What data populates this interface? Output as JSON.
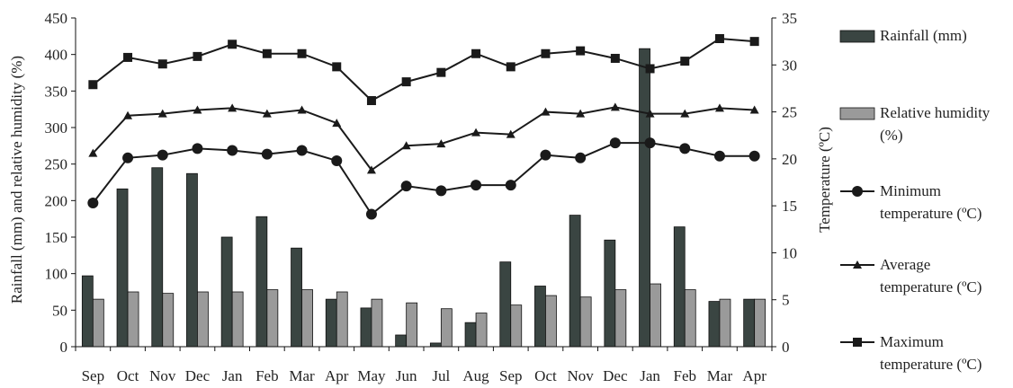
{
  "chart_data": {
    "type": "bar",
    "categories": [
      "Sep",
      "Oct",
      "Nov",
      "Dec",
      "Jan",
      "Feb",
      "Mar",
      "Apr",
      "May",
      "Jun",
      "Jul",
      "Aug",
      "Sep",
      "Oct",
      "Nov",
      "Dec",
      "Jan",
      "Feb",
      "Mar",
      "Apr"
    ],
    "ylabel": "Rainfall (mm) and relative humidity (%)",
    "y2label": "Temperature (ºC)",
    "ylim": [
      0,
      450
    ],
    "y2lim": [
      0,
      35
    ],
    "yticks": [
      "0",
      "50",
      "100",
      "150",
      "200",
      "250",
      "300",
      "350",
      "400",
      "450"
    ],
    "y2ticks": [
      "0",
      "5",
      "10",
      "15",
      "20",
      "25",
      "30",
      "35"
    ],
    "colors": {
      "rainfall": "#3a4542",
      "humidity": "#9a9a9a",
      "lines": "#1a1a1a"
    },
    "series": [
      {
        "name": "Rainfall (mm)",
        "kind": "bar",
        "axis": "left",
        "values": [
          97,
          216,
          245,
          237,
          150,
          178,
          135,
          65,
          53,
          16,
          5,
          33,
          116,
          83,
          180,
          146,
          408,
          164,
          62,
          65
        ]
      },
      {
        "name": "Relative humidity (%)",
        "kind": "bar",
        "axis": "left",
        "values": [
          65,
          75,
          73,
          75,
          75,
          78,
          78,
          75,
          65,
          60,
          52,
          46,
          57,
          70,
          68,
          78,
          86,
          78,
          65,
          65
        ]
      },
      {
        "name": "Minimum temperature (ºC)",
        "kind": "line",
        "marker": "circle",
        "axis": "right",
        "values": [
          15.3,
          20.1,
          20.4,
          21.1,
          20.9,
          20.5,
          20.9,
          19.8,
          14.1,
          17.1,
          16.6,
          17.2,
          17.2,
          20.4,
          20.1,
          21.7,
          21.7,
          21.1,
          20.3,
          20.3
        ]
      },
      {
        "name": "Average temperature (ºC)",
        "kind": "line",
        "marker": "triangle",
        "axis": "right",
        "values": [
          20.6,
          24.6,
          24.8,
          25.2,
          25.4,
          24.8,
          25.2,
          23.8,
          18.8,
          21.4,
          21.6,
          22.8,
          22.6,
          25.0,
          24.8,
          25.5,
          24.8,
          24.8,
          25.4,
          25.2
        ]
      },
      {
        "name": "Maximum temperature (ºC)",
        "kind": "line",
        "marker": "square",
        "axis": "right",
        "values": [
          27.9,
          30.8,
          30.1,
          30.9,
          32.2,
          31.2,
          31.2,
          29.8,
          26.2,
          28.2,
          29.2,
          31.2,
          29.8,
          31.2,
          31.5,
          30.7,
          29.6,
          30.4,
          32.8,
          32.5
        ]
      }
    ],
    "legend": {
      "placement": "right",
      "items": [
        {
          "lines": [
            "Rainfall (mm)"
          ]
        },
        {
          "lines": [
            "Relative humidity",
            "(%)"
          ]
        },
        {
          "lines": [
            "Minimum",
            "temperature (ºC)"
          ]
        },
        {
          "lines": [
            "Average",
            "temperature (ºC)"
          ]
        },
        {
          "lines": [
            "Maximum",
            "temperature (ºC)"
          ]
        }
      ]
    }
  }
}
